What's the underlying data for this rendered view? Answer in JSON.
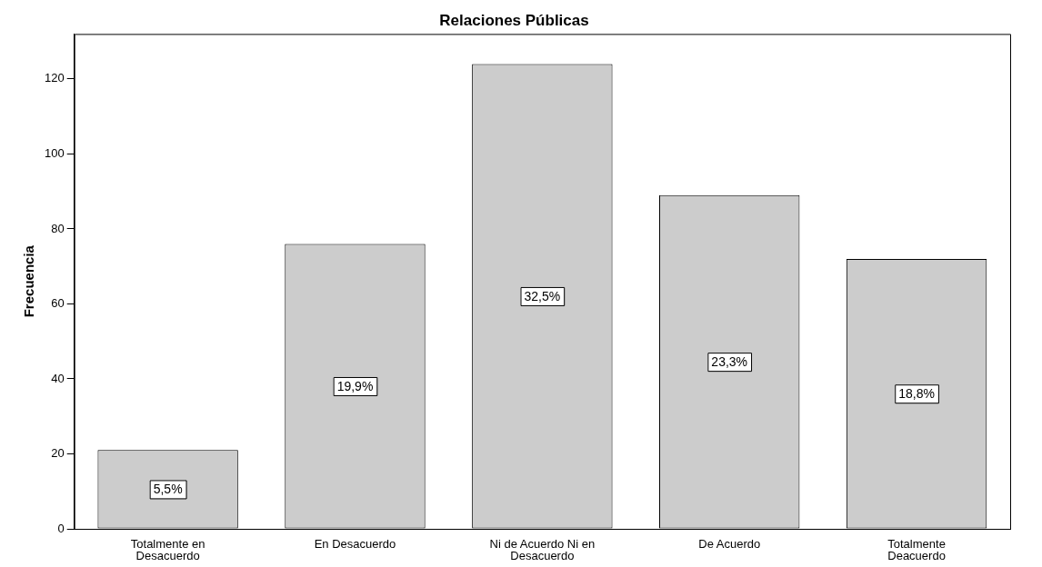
{
  "chart_data": {
    "type": "bar",
    "title": "Relaciones Públicas",
    "ylabel": "Frecuencia",
    "categories": [
      "Totalmente en Desacuerdo",
      "En Desacuerdo",
      "Ni de Acuerdo Ni en Desacuerdo",
      "De Acuerdo",
      "Totalmente Deacuerdo"
    ],
    "values": [
      21,
      76,
      124,
      89,
      72
    ],
    "annotations": [
      "5,5%",
      "19,9%",
      "32,5%",
      "23,3%",
      "18,8%"
    ],
    "color": "#cccccc",
    "ylim": [
      0,
      132
    ],
    "yticks": [
      0,
      20,
      40,
      60,
      80,
      100,
      120
    ],
    "grid": false,
    "legend": false
  }
}
